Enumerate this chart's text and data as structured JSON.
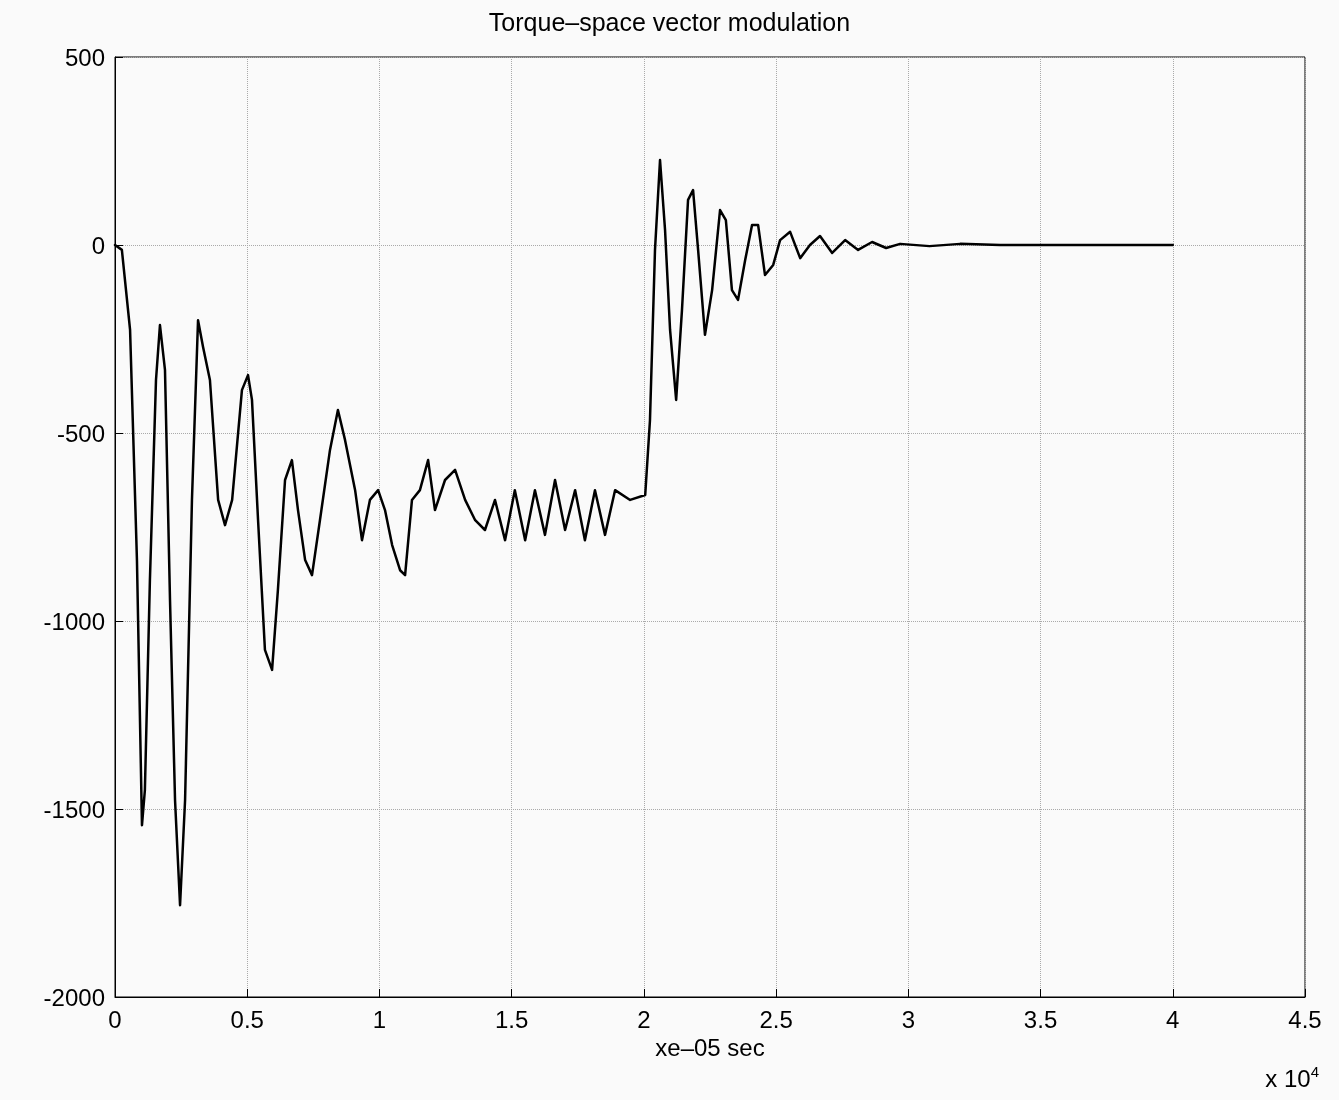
{
  "chart_data": {
    "type": "line",
    "title": "Torque–space vector modulation",
    "xlabel": "xe–05 sec",
    "annotations": [
      "x 10$^{4}$"
    ],
    "xlim": [
      0,
      4.5
    ],
    "xticks": [
      0,
      0.5,
      1,
      1.5,
      2,
      2.5,
      3,
      3.5,
      4,
      4.5
    ],
    "ylim": [
      -2000,
      500
    ],
    "yticks": [
      -2000,
      -1500,
      -1000,
      -500,
      0,
      500
    ],
    "grid": true,
    "marker": "none",
    "line_style": "solid",
    "series": [
      {
        "color": "#000000",
        "x": [
          0,
          0.026,
          0.057,
          0.083,
          0.102,
          0.113,
          0.132,
          0.155,
          0.17,
          0.189,
          0.208,
          0.227,
          0.246,
          0.265,
          0.291,
          0.314,
          0.333,
          0.359,
          0.39,
          0.416,
          0.443,
          0.48,
          0.503,
          0.518,
          0.541,
          0.567,
          0.594,
          0.616,
          0.643,
          0.669,
          0.692,
          0.719,
          0.745,
          0.775,
          0.813,
          0.843,
          0.87,
          0.908,
          0.934,
          0.964,
          0.995,
          1.021,
          1.048,
          1.078,
          1.097,
          1.123,
          1.153,
          1.184,
          1.21,
          1.248,
          1.286,
          1.324,
          1.362,
          1.399,
          1.437,
          1.475,
          1.512,
          1.551,
          1.588,
          1.626,
          1.664,
          1.702,
          1.74,
          1.777,
          1.815,
          1.853,
          1.891,
          1.948,
          2.005,
          2.023,
          2.042,
          2.061,
          2.08,
          2.099,
          2.122,
          2.144,
          2.167,
          2.186,
          2.205,
          2.231,
          2.258,
          2.288,
          2.31,
          2.333,
          2.356,
          2.383,
          2.409,
          2.432,
          2.458,
          2.489,
          2.515,
          2.553,
          2.591,
          2.628,
          2.666,
          2.712,
          2.761,
          2.81,
          2.863,
          2.916,
          2.969,
          3.08,
          3.196,
          3.347,
          4.0
        ],
        "values": [
          0,
          -13,
          -226,
          -838,
          -1543,
          -1450,
          -891,
          -359,
          -213,
          -332,
          -944,
          -1476,
          -1756,
          -1476,
          -678,
          -200,
          -271,
          -359,
          -678,
          -745,
          -678,
          -386,
          -346,
          -412,
          -732,
          -1077,
          -1130,
          -918,
          -625,
          -572,
          -705,
          -838,
          -878,
          -732,
          -545,
          -439,
          -519,
          -652,
          -785,
          -678,
          -652,
          -705,
          -798,
          -865,
          -878,
          -678,
          -652,
          -572,
          -705,
          -625,
          -598,
          -678,
          -732,
          -758,
          -678,
          -785,
          -652,
          -785,
          -652,
          -771,
          -625,
          -758,
          -652,
          -785,
          -652,
          -771,
          -652,
          -678,
          -665,
          -466,
          -13,
          226,
          40,
          -226,
          -412,
          -173,
          120,
          146,
          -13,
          -239,
          -120,
          93,
          66,
          -120,
          -146,
          -40,
          53,
          53,
          -80,
          -53,
          13,
          35,
          -35,
          0,
          24,
          -21,
          13,
          -13,
          8,
          -8,
          3,
          -3,
          3,
          0,
          0
        ]
      }
    ]
  }
}
